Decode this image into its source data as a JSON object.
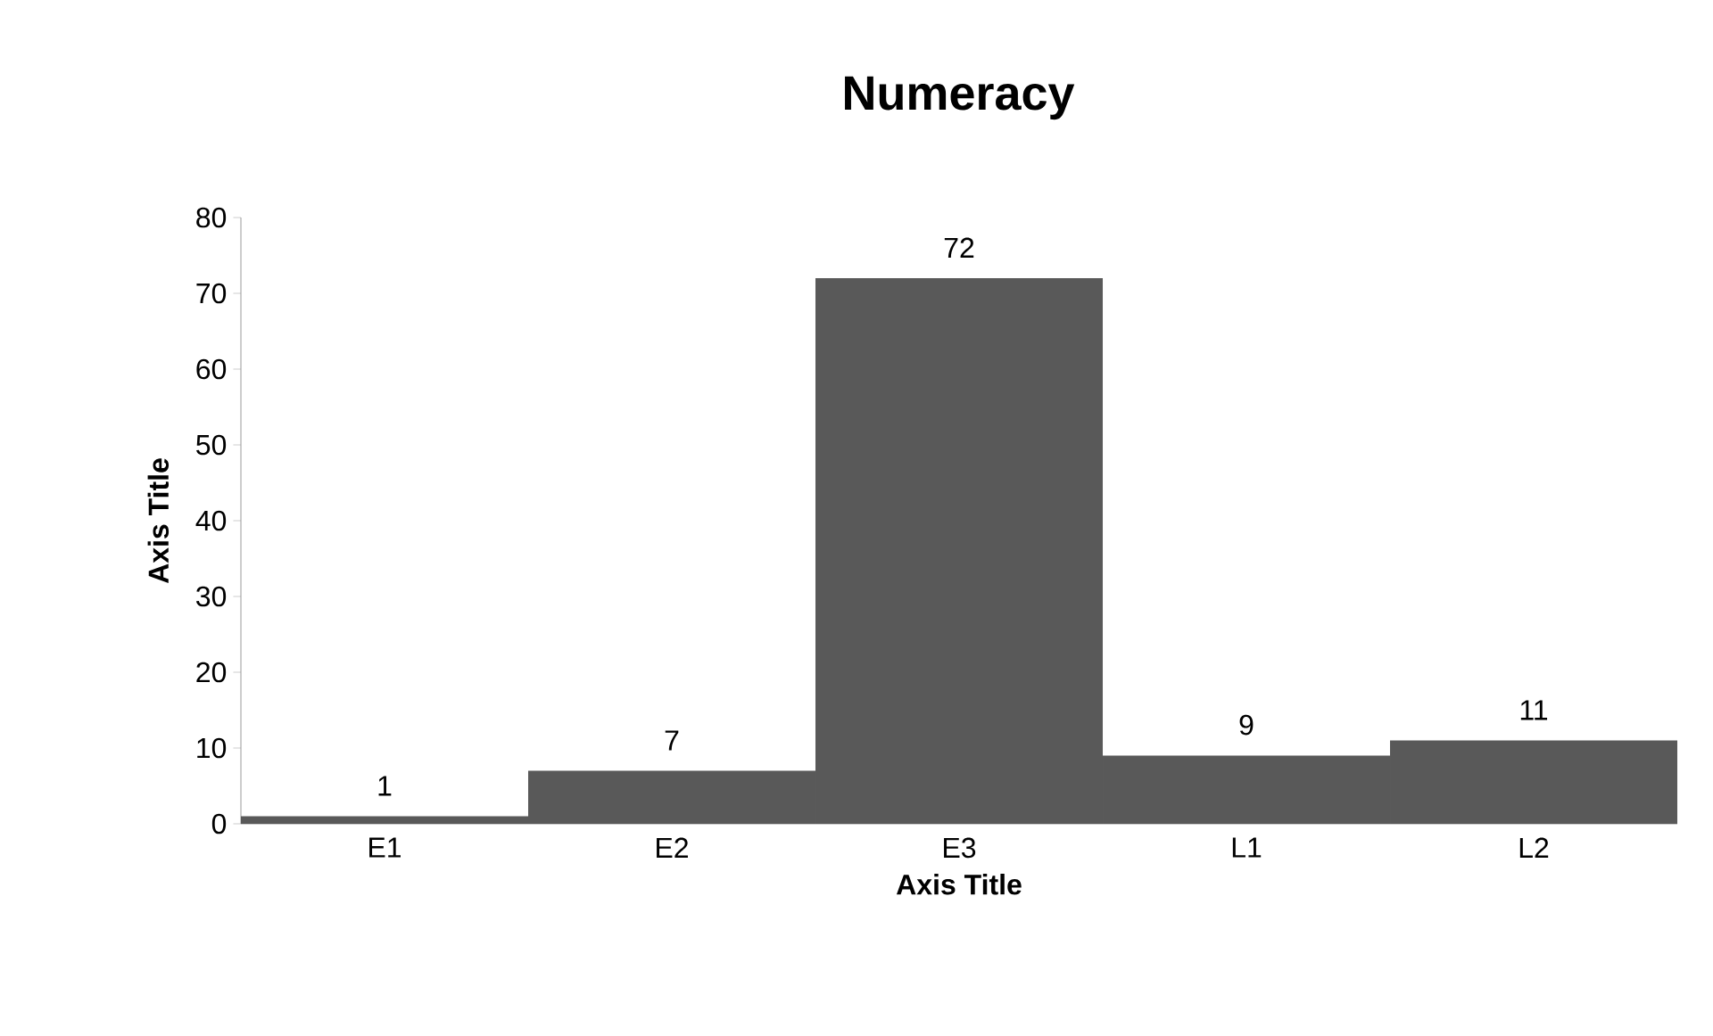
{
  "chart_data": {
    "type": "bar",
    "title": "Numeracy",
    "xlabel": "Axis Title",
    "ylabel": "Axis Title",
    "categories": [
      "E1",
      "E2",
      "E3",
      "L1",
      "L2"
    ],
    "values": [
      1,
      7,
      72,
      9,
      11
    ],
    "color": "#595959",
    "ylim": [
      0,
      80
    ],
    "yticks": [
      0,
      10,
      20,
      30,
      40,
      50,
      60,
      70,
      80
    ],
    "data_labels": true
  }
}
